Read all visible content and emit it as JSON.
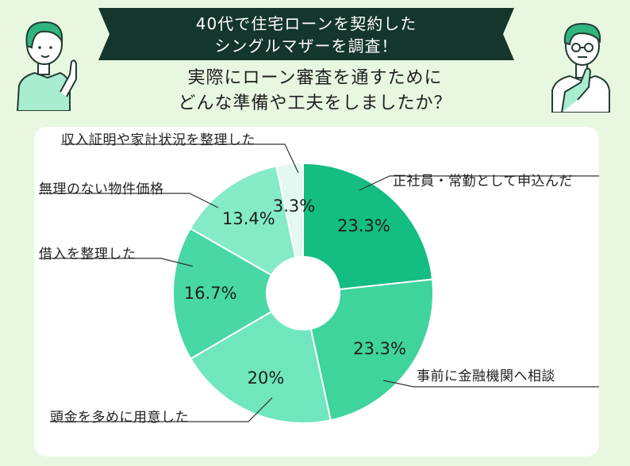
{
  "header": {
    "banner_line1": "40代で住宅ローンを契約した",
    "banner_line2": "シングルマザーを調査！",
    "question_line1": "実際にローン審査を通すために",
    "question_line2": "どんな準備や工夫をしましたか？"
  },
  "colors": {
    "background": "#e8f7e0",
    "banner": "#14362c",
    "panel": "#ffffff"
  },
  "chart_data": {
    "type": "pie",
    "donut": true,
    "start_angle_deg": 0,
    "direction": "clockwise",
    "categories": [
      "正社員・常勤として申込んだ",
      "事前に金融機関へ相談",
      "頭金を多めに用意した",
      "借入を整理した",
      "無理のない物件価格",
      "収入証明や家計状況を整理した"
    ],
    "values": [
      23.3,
      23.3,
      20,
      16.7,
      13.4,
      3.3
    ],
    "value_labels": [
      "23.3%",
      "23.3%",
      "20%",
      "16.7%",
      "13.4%",
      "3.3%"
    ],
    "colors": [
      "#14bd80",
      "#3ed49c",
      "#70e6bc",
      "#48d8a3",
      "#84ebc6",
      "#e3f8ee"
    ]
  }
}
